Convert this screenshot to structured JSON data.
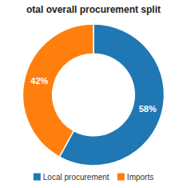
{
  "chart_data": {
    "type": "donut",
    "title": "otal overall procurement split",
    "categories": [
      "Local procurement",
      "Imports"
    ],
    "values": [
      58,
      42
    ],
    "value_labels": [
      "58%",
      "42%"
    ],
    "data_labels": true,
    "legend": "bottom"
  }
}
